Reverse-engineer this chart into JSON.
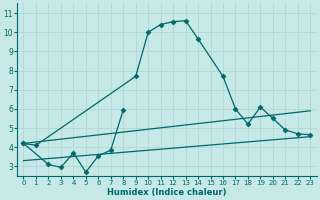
{
  "xlabel": "Humidex (Indice chaleur)",
  "xlim": [
    -0.5,
    23.5
  ],
  "ylim": [
    2.5,
    11.5
  ],
  "yticks": [
    3,
    4,
    5,
    6,
    7,
    8,
    9,
    10,
    11
  ],
  "xticks": [
    0,
    1,
    2,
    3,
    4,
    5,
    6,
    7,
    8,
    9,
    10,
    11,
    12,
    13,
    14,
    15,
    16,
    17,
    18,
    19,
    20,
    21,
    22,
    23
  ],
  "background_color": "#c6e8e6",
  "grid_color": "#b0d8d4",
  "line_color": "#006868",
  "line1_x": [
    0,
    1,
    9,
    10,
    11,
    12,
    13,
    14,
    16,
    17,
    18,
    19,
    20,
    21,
    22,
    23
  ],
  "line1_y": [
    4.2,
    4.1,
    7.7,
    10.0,
    10.4,
    10.55,
    10.6,
    9.65,
    7.7,
    6.0,
    5.2,
    6.1,
    5.5,
    4.9,
    4.7,
    4.65
  ],
  "line2_x": [
    0,
    2,
    3,
    4,
    5,
    6,
    7,
    8
  ],
  "line2_y": [
    4.2,
    3.1,
    2.95,
    3.7,
    2.7,
    3.55,
    3.85,
    5.95
  ],
  "line3_x": [
    0,
    23
  ],
  "line3_y": [
    3.3,
    4.55
  ],
  "line4_x": [
    0,
    23
  ],
  "line4_y": [
    4.2,
    5.9
  ]
}
